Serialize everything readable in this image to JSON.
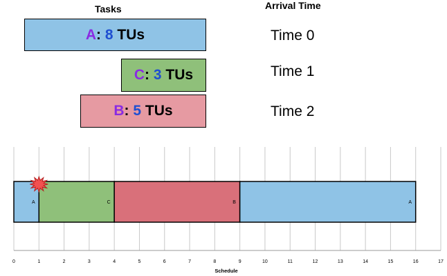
{
  "headers": {
    "tasks": "Tasks",
    "arrival": "Arrival Time"
  },
  "tasks": [
    {
      "letter": "A",
      "colon": ":",
      "num": "8",
      "unit": "TUs",
      "color": "#8fc3e6"
    },
    {
      "letter": "C",
      "colon": ":",
      "num": "3",
      "unit": "TUs",
      "color": "#8fc07a"
    },
    {
      "letter": "B",
      "colon": ":",
      "num": "5",
      "unit": "TUs",
      "color": "#e69aa2"
    }
  ],
  "arrivals": [
    "Time 0",
    "Time 1",
    "Time 2"
  ],
  "chart_data": {
    "type": "timeline",
    "xlabel": "Schedule",
    "xlim": [
      0,
      17
    ],
    "ticks": [
      "0",
      "1",
      "2",
      "3",
      "4",
      "5",
      "6",
      "7",
      "8",
      "9",
      "10",
      "11",
      "12",
      "13",
      "14",
      "15",
      "16",
      "17"
    ],
    "segments": [
      {
        "label": "A",
        "start": 0,
        "end": 1,
        "color": "#8fc3e6"
      },
      {
        "label": "C",
        "start": 1,
        "end": 4,
        "color": "#8fc07a"
      },
      {
        "label": "B",
        "start": 4,
        "end": 9,
        "color": "#d9707a"
      },
      {
        "label": "A",
        "start": 9,
        "end": 16,
        "color": "#8fc3e6"
      }
    ],
    "preempt_marker_at": 1
  }
}
